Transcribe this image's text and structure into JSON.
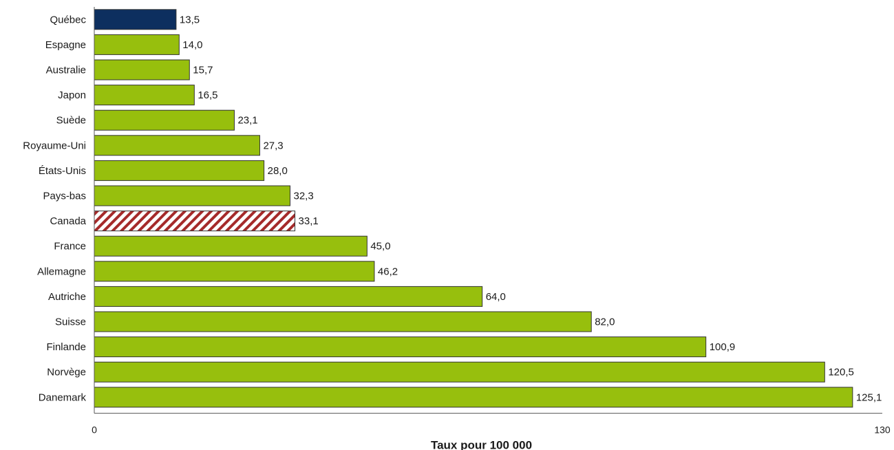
{
  "chart_data": {
    "type": "bar",
    "orientation": "horizontal",
    "categories": [
      "Québec",
      "Espagne",
      "Australie",
      "Japon",
      "Suède",
      "Royaume-Uni",
      "États-Unis",
      "Pays-bas",
      "Canada",
      "France",
      "Allemagne",
      "Autriche",
      "Suisse",
      "Finlande",
      "Norvège",
      "Danemark"
    ],
    "values": [
      13.5,
      14.0,
      15.7,
      16.5,
      23.1,
      27.3,
      28.0,
      32.3,
      33.1,
      45.0,
      46.2,
      64.0,
      82.0,
      100.9,
      120.5,
      125.1
    ],
    "value_labels": [
      "13,5",
      "14,0",
      "15,7",
      "16,5",
      "23,1",
      "27,3",
      "28,0",
      "32,3",
      "33,1",
      "45,0",
      "46,2",
      "64,0",
      "82,0",
      "100,9",
      "120,5",
      "125,1"
    ],
    "bar_styles": [
      "quebec",
      "default",
      "default",
      "default",
      "default",
      "default",
      "default",
      "default",
      "canada",
      "default",
      "default",
      "default",
      "default",
      "default",
      "default",
      "default"
    ],
    "colors": {
      "default": "#97bf0d",
      "quebec": "#0d2f5f",
      "canada_stripe": "#a52a2a",
      "canada_bg": "#ffffff",
      "outline": "#333333"
    },
    "xlabel": "Taux pour 100 000",
    "xlim": [
      0,
      130
    ],
    "xticks": [
      "0",
      "130"
    ],
    "grid": false,
    "legend": "none"
  }
}
